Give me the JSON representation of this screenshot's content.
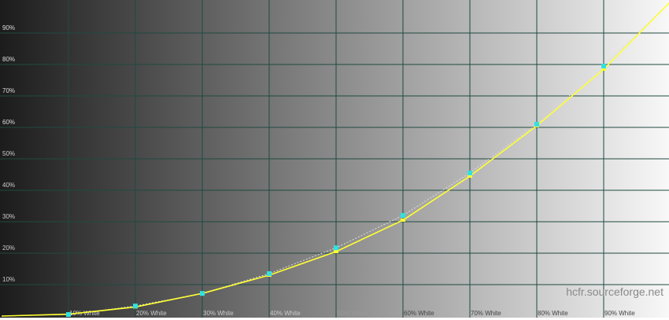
{
  "chart_data": {
    "type": "line",
    "title": "",
    "xlabel": "",
    "ylabel": "",
    "xlim": [
      0,
      100
    ],
    "ylim": [
      0,
      100
    ],
    "grid": true,
    "x_tick_labels": [
      "10% White",
      "20% White",
      "30% White",
      "40% White",
      "50% White",
      "60% White",
      "70% White",
      "80% White",
      "90% White"
    ],
    "y_tick_labels": [
      "10%",
      "20%",
      "30%",
      "40%",
      "50%",
      "60%",
      "70%",
      "80%",
      "90%"
    ],
    "x": [
      0,
      10,
      20,
      30,
      40,
      50,
      60,
      70,
      80,
      90,
      100
    ],
    "series": [
      {
        "values": [
          0,
          0.5,
          3.2,
          7.2,
          13.5,
          21.7,
          32,
          45.5,
          61,
          79.5,
          100
        ],
        "color": "#33e0e0",
        "marker": "square"
      },
      {
        "values": [
          0,
          0.6,
          2.9,
          7.2,
          13.0,
          20.5,
          30.5,
          44.5,
          60.5,
          78.5,
          100
        ],
        "color": "#ffff33",
        "marker": "none"
      }
    ],
    "background": "grayscale gradient dark-to-white",
    "colors": {
      "grid": "#1f4a40",
      "reference_dashed": "#dddddd"
    }
  },
  "watermark": "hcfr.sourceforge.net"
}
